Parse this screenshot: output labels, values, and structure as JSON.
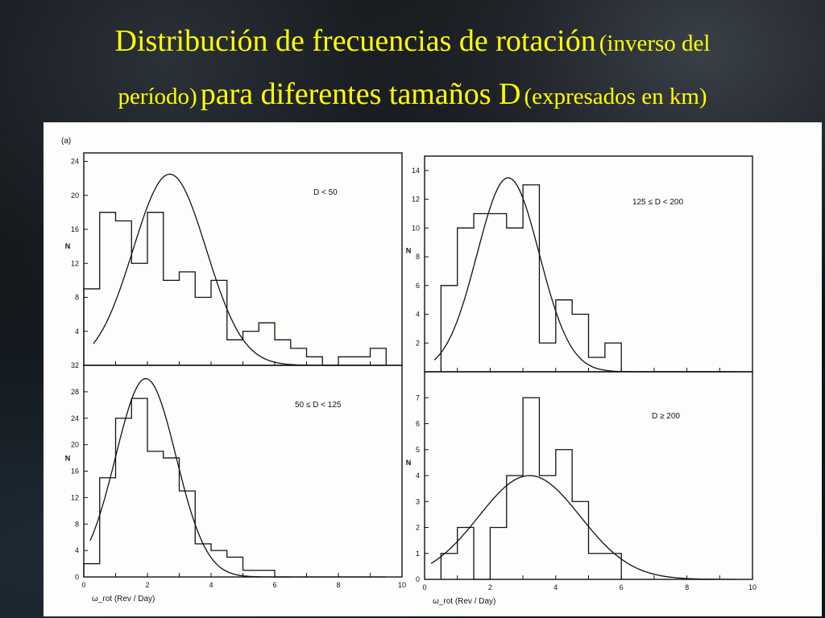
{
  "slide": {
    "title_part1": "Distribución de frecuencias de rotación",
    "title_part2": "(inverso del",
    "title_part3": "período)",
    "title_part4": "para diferentes tamaños D",
    "title_part5": "(expresados en km)",
    "title_color": "#ffff00"
  },
  "figure": {
    "panel_label": "(a)"
  },
  "chart_data": [
    {
      "type": "bar",
      "label": "D < 50",
      "ylabel": "N",
      "xlim": [
        0,
        10
      ],
      "ylim": [
        0,
        25
      ],
      "yticks": [
        4,
        8,
        12,
        16,
        20,
        24
      ],
      "bin_edges": [
        0,
        0.5,
        1,
        1.5,
        2,
        2.5,
        3,
        3.5,
        4,
        4.5,
        5,
        5.5,
        6,
        6.5,
        7,
        7.5,
        8,
        8.5,
        9,
        9.5
      ],
      "values": [
        9,
        18,
        17,
        12,
        18,
        10,
        11,
        8,
        10,
        3,
        4,
        5,
        3,
        2,
        1,
        0,
        1,
        1,
        2
      ],
      "fit_curve": {
        "peak_x": 2.7,
        "peak_y": 22.5,
        "sigma": 1.15
      }
    },
    {
      "type": "bar",
      "label": "50 ≤ D < 125",
      "ylabel": "N",
      "xlabel": "ω_rot (Rev / Day)",
      "xlim": [
        0,
        10
      ],
      "ylim": [
        0,
        32
      ],
      "xticks": [
        0,
        2,
        4,
        6,
        8,
        10
      ],
      "yticks": [
        0,
        4,
        8,
        12,
        16,
        20,
        24,
        28,
        32
      ],
      "bin_edges": [
        0,
        0.5,
        1,
        1.5,
        2,
        2.5,
        3,
        3.5,
        4,
        4.5,
        5,
        5.5,
        6,
        6.5
      ],
      "values": [
        2,
        15,
        24,
        27,
        19,
        18,
        13,
        5,
        4,
        3,
        1,
        1,
        0
      ],
      "fit_curve": {
        "peak_x": 1.95,
        "peak_y": 30,
        "sigma": 0.95
      }
    },
    {
      "type": "bar",
      "label": "125 ≤ D < 200",
      "ylabel": "N",
      "xlim": [
        0,
        10
      ],
      "ylim": [
        0,
        15
      ],
      "yticks": [
        2,
        4,
        6,
        8,
        10,
        12,
        14
      ],
      "bin_edges": [
        0.5,
        1,
        1.5,
        2,
        2.5,
        3,
        3.5,
        4,
        4.5,
        5,
        5.5,
        6
      ],
      "values": [
        6,
        10,
        11,
        11,
        10,
        13,
        2,
        5,
        4,
        1,
        2
      ],
      "fit_curve": {
        "peak_x": 2.55,
        "peak_y": 13.5,
        "sigma": 0.95
      }
    },
    {
      "type": "bar",
      "label": "D ≥ 200",
      "ylabel": "N",
      "xlabel": "ω_rot (Rev / Day)",
      "xlim": [
        0,
        10
      ],
      "ylim": [
        0,
        8
      ],
      "xticks": [
        0,
        2,
        4,
        6,
        8,
        10
      ],
      "yticks": [
        0,
        1,
        2,
        3,
        4,
        5,
        6,
        7
      ],
      "bin_edges": [
        0.5,
        1,
        1.5,
        2,
        2.5,
        3,
        3.5,
        4,
        4.5,
        5,
        5.5,
        6
      ],
      "values": [
        1,
        2,
        0,
        2,
        4,
        7,
        4,
        5,
        3,
        1,
        1
      ],
      "fit_curve": {
        "peak_x": 3.2,
        "peak_y": 4,
        "sigma": 1.55
      }
    }
  ]
}
